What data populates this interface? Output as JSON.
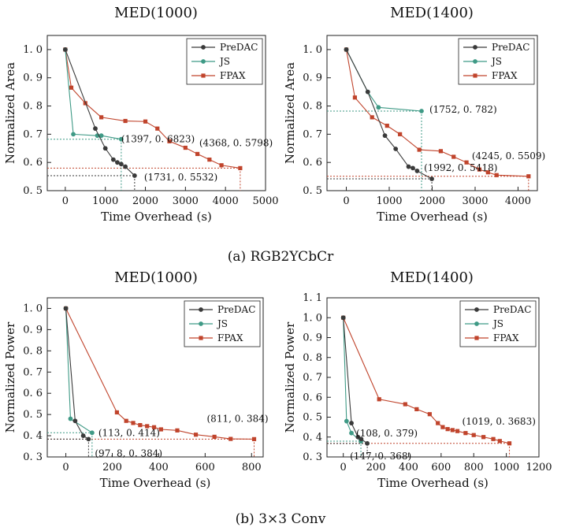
{
  "captions": [
    "(a) RGB2YCbCr",
    "(b) 3×3 Conv"
  ],
  "colors": {
    "PreDAC": "#3a3a3a",
    "JS": "#3f9a86",
    "FPAX": "#c0442c"
  },
  "chart_data": [
    {
      "type": "line",
      "title": "MED(1000)",
      "xlabel": "Time Overhead (s)",
      "ylabel": "Normalized Area",
      "xlim": [
        -450,
        5000
      ],
      "ylim": [
        0.5,
        1.05
      ],
      "xticks": [
        0,
        1000,
        2000,
        3000,
        4000,
        5000
      ],
      "yticks": [
        0.5,
        0.6,
        0.7,
        0.8,
        0.9,
        1.0
      ],
      "ytick_labels": [
        "0. 5",
        "0. 6",
        "0. 7",
        "0. 8",
        "0. 9",
        "1. 0"
      ],
      "grid": false,
      "legend_position": "top-right",
      "series": [
        {
          "name": "PreDAC",
          "marker": "circle",
          "x": [
            0,
            750,
            1000,
            1200,
            1300,
            1397,
            1500,
            1731
          ],
          "y": [
            1.0,
            0.72,
            0.65,
            0.61,
            0.6,
            0.594,
            0.585,
            0.5532
          ]
        },
        {
          "name": "JS",
          "marker": "circle",
          "x": [
            0,
            200,
            800,
            900,
            1397
          ],
          "y": [
            1.0,
            0.7,
            0.695,
            0.695,
            0.6823
          ]
        },
        {
          "name": "FPAX",
          "marker": "square",
          "x": [
            0,
            150,
            500,
            900,
            1500,
            2000,
            2300,
            2600,
            3000,
            3300,
            3600,
            3900,
            4368
          ],
          "y": [
            1.0,
            0.865,
            0.81,
            0.76,
            0.747,
            0.745,
            0.72,
            0.675,
            0.652,
            0.63,
            0.61,
            0.59,
            0.5798
          ]
        }
      ],
      "annotations": [
        {
          "text": "(4368, 0. 5798)",
          "x": 4368,
          "y": 0.5798,
          "series": "FPAX"
        },
        {
          "text": "(1397, 0. 6823)",
          "x": 1397,
          "y": 0.6823,
          "series": "JS"
        },
        {
          "text": "(1731, 0. 5532)",
          "x": 1731,
          "y": 0.5532,
          "series": "PreDAC"
        }
      ]
    },
    {
      "type": "line",
      "title": "MED(1400)",
      "xlabel": "Time Overhead (s)",
      "ylabel": "Normalized Area",
      "xlim": [
        -450,
        4450
      ],
      "ylim": [
        0.5,
        1.05
      ],
      "xticks": [
        0,
        1000,
        2000,
        3000,
        4000
      ],
      "yticks": [
        0.5,
        0.6,
        0.7,
        0.8,
        0.9,
        1.0
      ],
      "ytick_labels": [
        "0. 5",
        "0. 6",
        "0. 7",
        "0. 8",
        "0. 9",
        "1. 0"
      ],
      "grid": false,
      "legend_position": "top-right",
      "series": [
        {
          "name": "PreDAC",
          "marker": "circle",
          "x": [
            0,
            500,
            900,
            1150,
            1450,
            1550,
            1650,
            1992
          ],
          "y": [
            1.0,
            0.85,
            0.695,
            0.648,
            0.585,
            0.58,
            0.57,
            0.5418
          ]
        },
        {
          "name": "JS",
          "marker": "circle",
          "x": [
            0,
            500,
            750,
            1752
          ],
          "y": [
            1.0,
            0.85,
            0.795,
            0.782
          ]
        },
        {
          "name": "FPAX",
          "marker": "square",
          "x": [
            0,
            200,
            600,
            950,
            1250,
            1700,
            2200,
            2500,
            2800,
            3100,
            3300,
            3500,
            4245
          ],
          "y": [
            1.0,
            0.83,
            0.76,
            0.73,
            0.7,
            0.645,
            0.64,
            0.62,
            0.6,
            0.575,
            0.565,
            0.555,
            0.5509
          ]
        }
      ],
      "annotations": [
        {
          "text": "(1752, 0. 782)",
          "x": 1752,
          "y": 0.782,
          "series": "JS"
        },
        {
          "text": "(4245, 0. 5509)",
          "x": 4245,
          "y": 0.5509,
          "series": "FPAX"
        },
        {
          "text": "(1992, 0. 5418)",
          "x": 1992,
          "y": 0.5418,
          "series": "PreDAC"
        }
      ]
    },
    {
      "type": "line",
      "title": "MED(1000)",
      "xlabel": "Time Overhead (s)",
      "ylabel": "Normalized Power",
      "xlim": [
        -80,
        850
      ],
      "ylim": [
        0.3,
        1.05
      ],
      "xticks": [
        0,
        200,
        400,
        600,
        800
      ],
      "yticks": [
        0.3,
        0.4,
        0.5,
        0.6,
        0.7,
        0.8,
        0.9,
        1.0
      ],
      "ytick_labels": [
        "0. 3",
        "0. 4",
        "0. 5",
        "0. 6",
        "0. 7",
        "0. 8",
        "0. 9",
        "1. 0"
      ],
      "grid": false,
      "legend_position": "top-right",
      "series": [
        {
          "name": "PreDAC",
          "marker": "circle",
          "x": [
            0,
            40,
            75,
            97.8
          ],
          "y": [
            1.0,
            0.47,
            0.4,
            0.384
          ]
        },
        {
          "name": "JS",
          "marker": "circle",
          "x": [
            0,
            20,
            113
          ],
          "y": [
            1.0,
            0.48,
            0.414
          ]
        },
        {
          "name": "FPAX",
          "marker": "square",
          "x": [
            0,
            220,
            260,
            290,
            320,
            350,
            380,
            410,
            480,
            560,
            640,
            710,
            811
          ],
          "y": [
            1.0,
            0.51,
            0.47,
            0.46,
            0.45,
            0.445,
            0.44,
            0.43,
            0.425,
            0.405,
            0.395,
            0.385,
            0.384
          ]
        }
      ],
      "annotations": [
        {
          "text": "(811, 0. 384)",
          "x": 811,
          "y": 0.384,
          "series": "FPAX"
        },
        {
          "text": "(113, 0. 414)",
          "x": 113,
          "y": 0.414,
          "series": "JS"
        },
        {
          "text": "(97. 8, 0. 384)",
          "x": 97.8,
          "y": 0.384,
          "series": "PreDAC"
        }
      ]
    },
    {
      "type": "line",
      "title": "MED(1400)",
      "xlabel": "Time Overhead (s)",
      "ylabel": "Normalized Power",
      "xlim": [
        -100,
        1200
      ],
      "ylim": [
        0.3,
        1.1
      ],
      "xticks": [
        0,
        200,
        400,
        600,
        800,
        1000,
        1200
      ],
      "yticks": [
        0.3,
        0.4,
        0.5,
        0.6,
        0.7,
        0.8,
        0.9,
        1.0,
        1.1
      ],
      "ytick_labels": [
        "0. 3",
        "0. 4",
        "0. 5",
        "0. 6",
        "0. 7",
        "0. 8",
        "0. 9",
        "1. 0",
        "1. 1"
      ],
      "grid": false,
      "legend_position": "top-right",
      "series": [
        {
          "name": "PreDAC",
          "marker": "circle",
          "x": [
            0,
            50,
            90,
            110,
            147
          ],
          "y": [
            1.0,
            0.47,
            0.4,
            0.39,
            0.368
          ]
        },
        {
          "name": "JS",
          "marker": "circle",
          "x": [
            0,
            20,
            50,
            108
          ],
          "y": [
            1.0,
            0.48,
            0.42,
            0.379
          ]
        },
        {
          "name": "FPAX",
          "marker": "square",
          "x": [
            0,
            220,
            380,
            450,
            530,
            580,
            610,
            640,
            670,
            700,
            750,
            800,
            860,
            920,
            960,
            1019
          ],
          "y": [
            1.0,
            0.59,
            0.565,
            0.54,
            0.515,
            0.47,
            0.45,
            0.44,
            0.435,
            0.43,
            0.42,
            0.41,
            0.4,
            0.39,
            0.38,
            0.3683
          ]
        }
      ],
      "annotations": [
        {
          "text": "(1019, 0. 3683)",
          "x": 1019,
          "y": 0.3683,
          "series": "FPAX"
        },
        {
          "text": "(108, 0. 379)",
          "x": 108,
          "y": 0.379,
          "series": "JS"
        },
        {
          "text": "(147, 0. 368)",
          "x": 147,
          "y": 0.368,
          "series": "PreDAC"
        }
      ]
    }
  ]
}
